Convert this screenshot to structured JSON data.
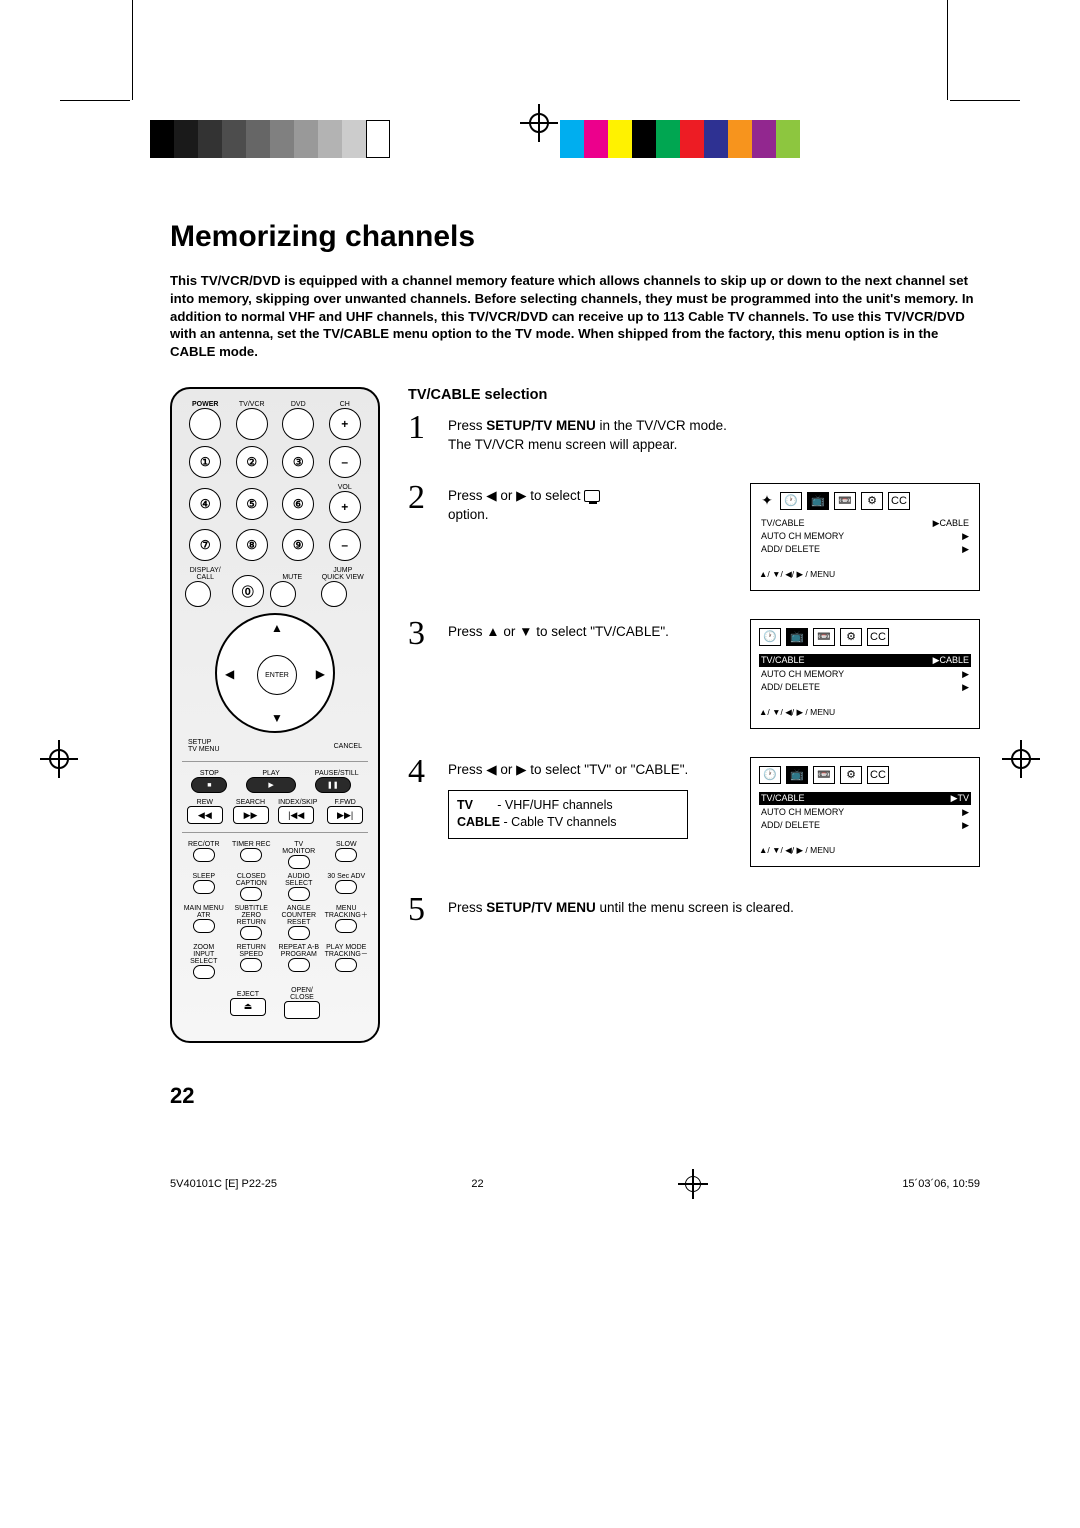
{
  "title": "Memorizing channels",
  "intro": "This TV/VCR/DVD is equipped with a channel memory feature which allows channels to skip up or down to the next channel set into memory, skipping over unwanted channels. Before selecting channels, they must be programmed into the unit's memory. In addition to normal VHF and UHF channels, this TV/VCR/DVD can receive up to 113 Cable TV channels. To use this TV/VCR/DVD with an antenna, set the TV/CABLE menu option to the TV mode. When shipped from the factory, this menu option is in the CABLE mode.",
  "subhead": "TV/CABLE selection",
  "steps": {
    "s1a": "Press ",
    "s1b": "SETUP/TV MENU",
    "s1c": " in the TV/VCR mode.",
    "s1d": "The TV/VCR menu screen will appear.",
    "s2": "Press ◀ or ▶ to select ",
    "s2b": " option.",
    "s3": "Press ▲ or ▼ to select \"TV/CABLE\".",
    "s4": "Press ◀ or ▶ to select \"TV\" or \"CABLE\".",
    "s5a": "Press ",
    "s5b": "SETUP/TV MENU",
    "s5c": " until the menu screen is cleared."
  },
  "defbox": {
    "l1a": "TV",
    "l1b": " - VHF/UHF channels",
    "l2a": "CABLE",
    "l2b": " - Cable TV channels"
  },
  "osd": {
    "row1": "TV/CABLE",
    "row2": "AUTO  CH  MEMORY",
    "row3": "ADD/ DELETE",
    "val_cable": "▶CABLE",
    "val_tv": "▶TV",
    "val_play": "▶",
    "footer": "▲/ ▼/ ◀/ ▶ / MENU"
  },
  "remote": {
    "power": "POWER",
    "tvvcr": "TV/VCR",
    "dvd": "DVD",
    "ch": "CH",
    "vol": "VOL",
    "mute": "MUTE",
    "display": "DISPLAY/\nCALL",
    "jump": "JUMP\nQUICK VIEW",
    "enter": "ENTER",
    "setup": "SETUP\nTV MENU",
    "cancel": "CANCEL",
    "stop": "STOP",
    "play": "PLAY",
    "pause": "PAUSE/STILL",
    "search": "SEARCH",
    "index": "INDEX/SKIP",
    "rew": "REW",
    "ffwd": "F.FWD",
    "recotr": "REC/OTR",
    "timerrec": "TIMER REC",
    "tvmon": "TV MONITOR",
    "slow": "SLOW",
    "sleep": "SLEEP",
    "cc": "CLOSED\nCAPTION",
    "audio": "AUDIO\nSELECT",
    "adv": "30 Sec ADV",
    "mainmenu": "MAIN MENU\nATR",
    "subtitle": "SUBTITLE\nZERO RETURN",
    "angle": "ANGLE\nCOUNTER RESET",
    "menutrk": "MENU\nTRACKING＋",
    "zoom": "ZOOM\nINPUT SELECT",
    "return": "RETURN\nSPEED",
    "repeat": "REPEAT A-B\nPROGRAM",
    "playmode": "PLAY MODE\nTRACKING－",
    "eject": "EJECT",
    "open": "OPEN/\nCLOSE"
  },
  "colorbars_left": [
    "#000",
    "#1a1a1a",
    "#333",
    "#4d4d4d",
    "#666",
    "#808080",
    "#999",
    "#b3b3b3",
    "#ccc",
    "#fff"
  ],
  "colorbars_right": [
    "#00aeef",
    "#ec008c",
    "#fff200",
    "#000",
    "#00a651",
    "#ed1c24",
    "#2e3192",
    "#f7941d",
    "#92278f",
    "#8dc63f"
  ],
  "page_number": "22",
  "footer_left": "5V40101C [E] P22-25",
  "footer_mid": "22",
  "footer_right": "15´03´06, 10:59"
}
